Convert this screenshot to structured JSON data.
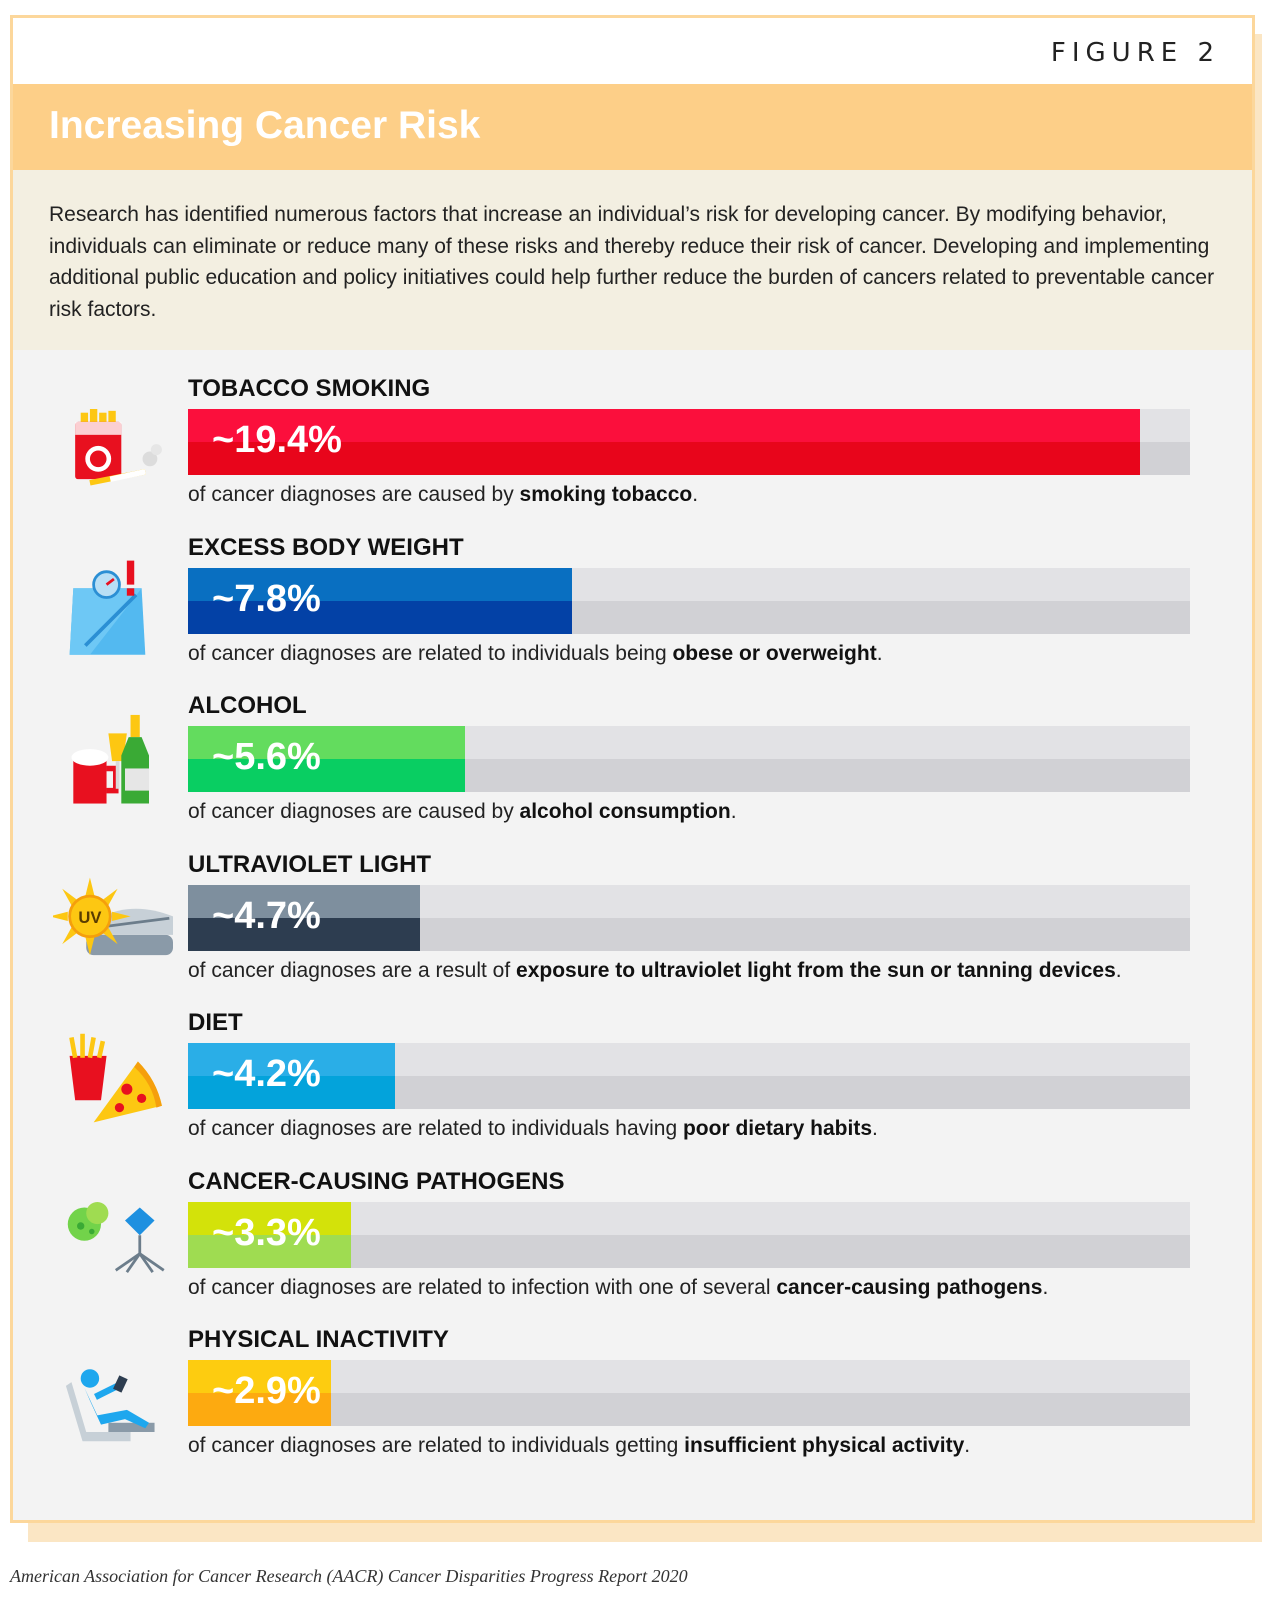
{
  "figure_label": "FIGURE 2",
  "title": "Increasing Cancer Risk",
  "intro": "Research has identified numerous factors that increase an individual’s risk for developing cancer. By modifying behavior, individuals can eliminate or reduce many of these risks and thereby reduce their risk of cancer. Developing and implementing additional public education and policy initiatives could help further reduce the burden of cancers related to preventable cancer risk factors.",
  "footer": "American Association for Cancer Research (AACR) Cancer Disparities Progress Report 2020",
  "chart_data": {
    "type": "bar",
    "orientation": "horizontal",
    "ylim": [
      0,
      20
    ],
    "categories": [
      "TOBACCO SMOKING",
      "EXCESS BODY WEIGHT",
      "ALCOHOL",
      "ULTRAVIOLET LIGHT",
      "DIET",
      "CANCER-CAUSING PATHOGENS",
      "PHYSICAL INACTIVITY"
    ],
    "values": [
      19.4,
      7.8,
      5.6,
      4.7,
      4.2,
      3.3,
      2.9
    ],
    "value_labels": [
      "~19.4%",
      "~7.8%",
      "~5.6%",
      "~4.7%",
      "~4.2%",
      "~3.3%",
      "~2.9%"
    ],
    "colors": [
      [
        "#fb0f3c",
        "#e8051b"
      ],
      [
        "#096fc1",
        "#0341a6"
      ],
      [
        "#63dc5e",
        "#09ce62"
      ],
      [
        "#7e8f9e",
        "#2d3d50"
      ],
      [
        "#2aaee7",
        "#03a3db"
      ],
      [
        "#d3e20a",
        "#9fdc51"
      ],
      [
        "#fdcc10",
        "#fdaa10"
      ]
    ],
    "icons": [
      "cigarette-pack-icon",
      "scale-icon",
      "alcohol-drinks-icon",
      "tanning-bed-sun-icon",
      "junk-food-icon",
      "pathogen-icon",
      "sedentary-person-icon"
    ],
    "descriptions": [
      {
        "prefix": "of cancer diagnoses are caused by ",
        "bold": "smoking tobacco",
        "suffix": "."
      },
      {
        "prefix": "of cancer diagnoses are related to individuals being ",
        "bold": "obese or overweight",
        "suffix": "."
      },
      {
        "prefix": "of cancer diagnoses are caused by ",
        "bold": "alcohol consumption",
        "suffix": "."
      },
      {
        "prefix": "of cancer diagnoses are a result of ",
        "bold": "exposure to ultraviolet light from the sun or tanning devices",
        "suffix": "."
      },
      {
        "prefix": "of cancer diagnoses are related to individuals having ",
        "bold": "poor dietary habits",
        "suffix": "."
      },
      {
        "prefix": "of cancer diagnoses are related to infection with one of several ",
        "bold": "cancer-causing pathogens",
        "suffix": "."
      },
      {
        "prefix": "of cancer diagnoses are related to individuals getting ",
        "bold": "insufficient physical activity",
        "suffix": "."
      }
    ],
    "uv_badge": "UV"
  }
}
